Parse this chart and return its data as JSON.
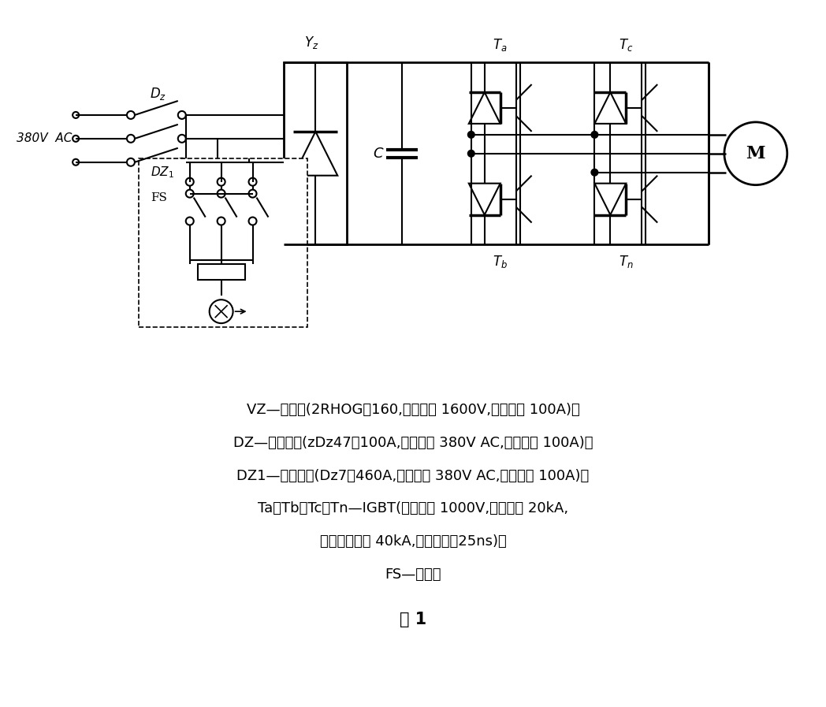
{
  "title": "图 1",
  "bg_color": "#ffffff",
  "line_color": "#000000",
  "text_lines": [
    "VZ—整流桥(2RHOG－160,击穿电压 1600V,工作电流 100A)；",
    "DZ—空气开关(zDz47－100A,工作电压 380V AC,工作电流 100A)；",
    "DZ1—空气开关(Dz7－460A,工作电压 380V AC,工作电流 100A)；",
    "Ta、Tb、Tc、Tn—IGBT(击穿电压 1000V,工作电流 20kA,",
    "最大工作电流 40kA,动作时间＜25ns)；",
    "FS—防雷器"
  ]
}
